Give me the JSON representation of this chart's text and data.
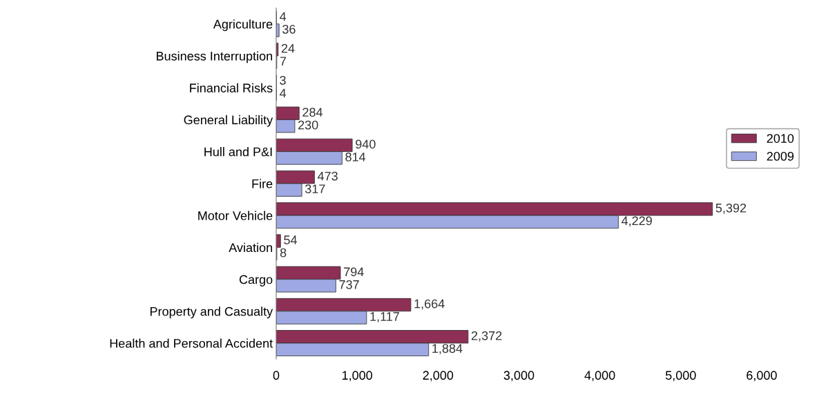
{
  "chart_data": {
    "type": "bar",
    "orientation": "horizontal",
    "categories": [
      "Agriculture",
      "Business Interruption",
      "Financial Risks",
      "General Liability",
      "Hull and P&I",
      "Fire",
      "Motor Vehicle",
      "Aviation",
      "Cargo",
      "Property and Casualty",
      "Health and Personal Accident"
    ],
    "series": [
      {
        "name": "2010",
        "color": "#8e2f55",
        "values": [
          4,
          24,
          3,
          284,
          940,
          473,
          5392,
          54,
          794,
          1664,
          2372
        ],
        "value_labels": [
          "4",
          "24",
          "3",
          "284",
          "940",
          "473",
          "5,392",
          "54",
          "794",
          "1,664",
          "2,372"
        ]
      },
      {
        "name": "2009",
        "color": "#9ea8e2",
        "values": [
          36,
          7,
          4,
          230,
          814,
          317,
          4229,
          8,
          737,
          1117,
          1884
        ],
        "value_labels": [
          "36",
          "7",
          "4",
          "230",
          "814",
          "317",
          "4,229",
          "8",
          "737",
          "1,117",
          "1,884"
        ]
      }
    ],
    "xlim": [
      0,
      6000
    ],
    "xticks": [
      0,
      {
        "value": 1000,
        "label": "1,000"
      },
      {
        "value": 2000,
        "label": "2,000"
      },
      {
        "value": 3000,
        "label": "3,000"
      },
      {
        "value": 4000,
        "label": "4,000"
      },
      {
        "value": 5000,
        "label": "5,000"
      },
      {
        "value": 6000,
        "label": "6,000"
      }
    ],
    "legend": "right",
    "grid": false
  }
}
